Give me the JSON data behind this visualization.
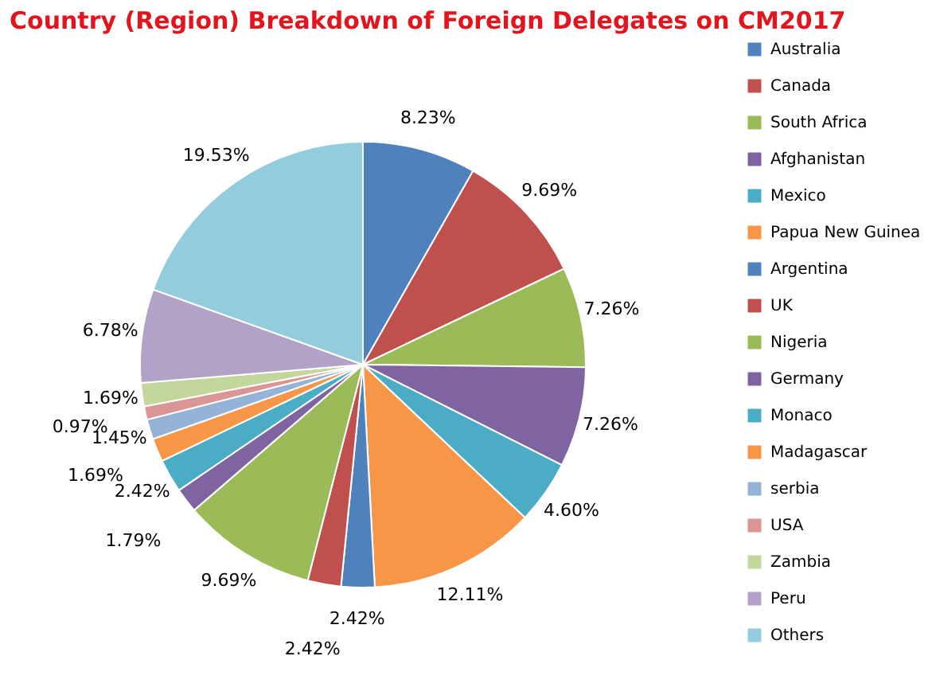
{
  "chart_data": {
    "type": "pie",
    "title": "Country (Region) Breakdown of Foreign Delegates on CM2017",
    "categories": [
      "Australia",
      "Canada",
      "South Africa",
      "Afghanistan",
      "Mexico",
      "Papua New  Guinea",
      "Argentina",
      "UK",
      "Nigeria",
      "Germany",
      "Monaco",
      "Madagascar",
      "serbia",
      "USA",
      "Zambia",
      "Peru",
      "Others"
    ],
    "values": [
      8.23,
      9.69,
      7.26,
      7.26,
      4.6,
      12.11,
      2.42,
      2.42,
      9.69,
      1.79,
      2.42,
      1.69,
      1.45,
      0.97,
      1.69,
      6.78,
      19.53
    ],
    "value_labels": [
      "8.23%",
      "9.69%",
      "7.26%",
      "7.26%",
      "4.60%",
      "12.11%",
      "2.42%",
      "2.42%",
      "9.69%",
      "1.79%",
      "2.42%",
      "1.69%",
      "1.45%",
      "0.97%",
      "1.69%",
      "6.78%",
      "19.53%"
    ],
    "colors": [
      "#4f81bd",
      "#c0504d",
      "#9bbb59",
      "#8064a2",
      "#4bacc6",
      "#f79646",
      "#4f81bd",
      "#c0504d",
      "#9bbb59",
      "#8064a2",
      "#4bacc6",
      "#f79646",
      "#95b3d7",
      "#d99694",
      "#c3d69b",
      "#b2a2c7",
      "#93cddd"
    ],
    "legend": "right"
  }
}
